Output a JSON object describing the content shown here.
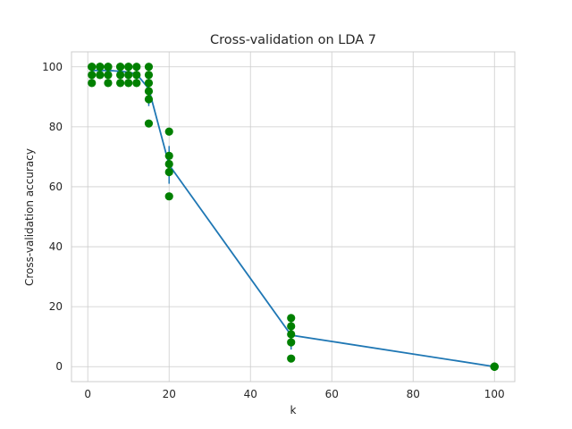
{
  "colors": {
    "line": "#1f77b4",
    "points": "#008000",
    "grid": "#cccccc",
    "background": "#ffffff"
  },
  "chart_data": {
    "type": "line",
    "title": "Cross-validation on LDA 7",
    "xlabel": "k",
    "ylabel": "Cross-validation accuracy",
    "xlim": [
      -4,
      105
    ],
    "ylim": [
      -5,
      105
    ],
    "xticks": [
      0,
      20,
      40,
      60,
      80,
      100
    ],
    "yticks": [
      0,
      20,
      40,
      60,
      80,
      100
    ],
    "grid": true,
    "series": [
      {
        "style": "line with error bars",
        "x": [
          1,
          3,
          5,
          8,
          10,
          12,
          15,
          20,
          50,
          100
        ],
        "y": [
          98.8,
          98.8,
          98.8,
          98.5,
          98.2,
          97.6,
          92.7,
          67.3,
          10.5,
          0
        ],
        "yerr": [
          2.2,
          1.5,
          1.8,
          2.0,
          2.0,
          2.3,
          5.8,
          6.3,
          4.8,
          0
        ]
      },
      {
        "style": "scatter",
        "points": [
          {
            "x": 1,
            "y": 100
          },
          {
            "x": 1,
            "y": 100
          },
          {
            "x": 1,
            "y": 97.3
          },
          {
            "x": 1,
            "y": 94.6
          },
          {
            "x": 3,
            "y": 100
          },
          {
            "x": 3,
            "y": 100
          },
          {
            "x": 3,
            "y": 100
          },
          {
            "x": 3,
            "y": 97.3
          },
          {
            "x": 3,
            "y": 97.3
          },
          {
            "x": 5,
            "y": 100
          },
          {
            "x": 5,
            "y": 100
          },
          {
            "x": 5,
            "y": 97.3
          },
          {
            "x": 5,
            "y": 94.6
          },
          {
            "x": 8,
            "y": 100
          },
          {
            "x": 8,
            "y": 100
          },
          {
            "x": 8,
            "y": 97.3
          },
          {
            "x": 8,
            "y": 94.6
          },
          {
            "x": 10,
            "y": 100
          },
          {
            "x": 10,
            "y": 100
          },
          {
            "x": 10,
            "y": 97.3
          },
          {
            "x": 10,
            "y": 94.6
          },
          {
            "x": 12,
            "y": 100
          },
          {
            "x": 12,
            "y": 97.3
          },
          {
            "x": 12,
            "y": 94.6
          },
          {
            "x": 15,
            "y": 100
          },
          {
            "x": 15,
            "y": 97.3
          },
          {
            "x": 15,
            "y": 94.6
          },
          {
            "x": 15,
            "y": 91.9
          },
          {
            "x": 15,
            "y": 89.2
          },
          {
            "x": 15,
            "y": 81.1
          },
          {
            "x": 20,
            "y": 78.4
          },
          {
            "x": 20,
            "y": 70.3
          },
          {
            "x": 20,
            "y": 67.6
          },
          {
            "x": 20,
            "y": 64.9
          },
          {
            "x": 20,
            "y": 56.8
          },
          {
            "x": 50,
            "y": 16.2
          },
          {
            "x": 50,
            "y": 13.5
          },
          {
            "x": 50,
            "y": 10.8
          },
          {
            "x": 50,
            "y": 8.1
          },
          {
            "x": 50,
            "y": 2.7
          },
          {
            "x": 100,
            "y": 0
          },
          {
            "x": 100,
            "y": 0
          },
          {
            "x": 100,
            "y": 0
          },
          {
            "x": 100,
            "y": 0
          },
          {
            "x": 100,
            "y": 0
          }
        ]
      }
    ]
  }
}
